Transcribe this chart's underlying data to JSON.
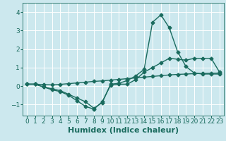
{
  "xlabel": "Humidex (Indice chaleur)",
  "bg_color": "#cce8ee",
  "line_color": "#1a6b5e",
  "grid_color": "#ffffff",
  "xlim": [
    -0.5,
    23.5
  ],
  "ylim": [
    -1.6,
    4.5
  ],
  "xticks": [
    0,
    1,
    2,
    3,
    4,
    5,
    6,
    7,
    8,
    9,
    10,
    11,
    12,
    13,
    14,
    15,
    16,
    17,
    18,
    19,
    20,
    21,
    22,
    23
  ],
  "yticks": [
    -1,
    0,
    1,
    2,
    3,
    4
  ],
  "line1_x": [
    0,
    1,
    2,
    3,
    4,
    5,
    6,
    7,
    8,
    9,
    10,
    11,
    12,
    13,
    14,
    15,
    16,
    17,
    18,
    19,
    20,
    21,
    22,
    23
  ],
  "line1_y": [
    0.1,
    0.1,
    -0.05,
    -0.15,
    -0.25,
    -0.45,
    -0.65,
    -0.85,
    -1.2,
    -0.9,
    0.1,
    0.15,
    0.3,
    0.55,
    0.9,
    3.45,
    3.85,
    3.15,
    1.85,
    1.05,
    0.7,
    0.65,
    0.65,
    0.65
  ],
  "line2_x": [
    0,
    1,
    2,
    3,
    4,
    5,
    6,
    7,
    8,
    9,
    10,
    11,
    12,
    13,
    14,
    15,
    16,
    17,
    18,
    19,
    20,
    21,
    22,
    23
  ],
  "line2_y": [
    0.1,
    0.1,
    -0.05,
    -0.2,
    -0.3,
    -0.5,
    -0.8,
    -1.1,
    -1.25,
    -0.85,
    0.05,
    0.1,
    0.1,
    0.35,
    0.75,
    1.0,
    1.25,
    1.5,
    1.45,
    1.4,
    1.5,
    1.5,
    1.5,
    0.75
  ],
  "line3_x": [
    0,
    1,
    2,
    3,
    4,
    5,
    6,
    7,
    8,
    9,
    10,
    11,
    12,
    13,
    14,
    15,
    16,
    17,
    18,
    19,
    20,
    21,
    22,
    23
  ],
  "line3_y": [
    0.1,
    0.1,
    0.08,
    0.06,
    0.09,
    0.13,
    0.17,
    0.21,
    0.25,
    0.28,
    0.32,
    0.36,
    0.4,
    0.44,
    0.48,
    0.52,
    0.56,
    0.6,
    0.63,
    0.65,
    0.67,
    0.68,
    0.69,
    0.7
  ],
  "marker": "D",
  "markersize": 2.5,
  "linewidth": 1.0,
  "xlabel_fontsize": 8,
  "tick_fontsize": 6.5
}
